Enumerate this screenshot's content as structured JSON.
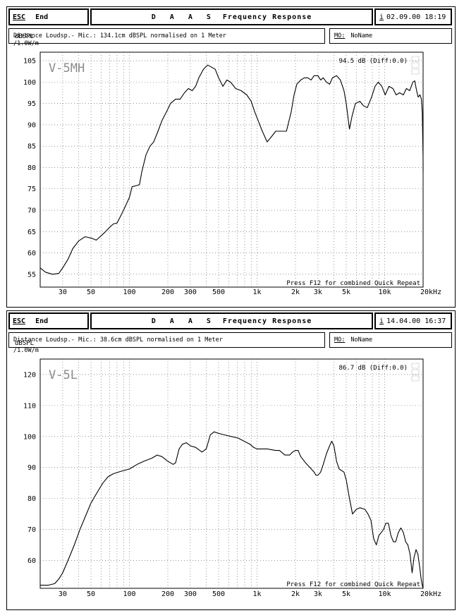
{
  "chart_data": [
    {
      "type": "line",
      "header": {
        "esc_label": "ESC",
        "end_label": "End",
        "title_app": "D A A S",
        "title_text": "Frequency Response",
        "date_key": "i",
        "date_text": "02.09.00 18:19"
      },
      "info": {
        "text": "Distance Loudsp.- Mic.: 134.1cm dBSPL normalised on 1 Meter",
        "mo_key": "MO:",
        "mo_value": "NoName"
      },
      "ylabel": "dBSPL",
      "yunit": "/1.0W/m",
      "label": "V-5MH",
      "level_readout": "94.5 dB (Diff:0.0)",
      "footer_note": "Press F12 for combined Quick Repeat",
      "x_ticks": [
        "30",
        "50",
        "100",
        "200",
        "300",
        "500",
        "1k",
        "2k",
        "3k",
        "5k",
        "10k",
        "20kHz"
      ],
      "y_ticks": [
        55,
        60,
        65,
        70,
        75,
        80,
        85,
        90,
        95,
        100,
        105
      ],
      "xlim": [
        20,
        20000
      ],
      "ylim": [
        52,
        107
      ],
      "xscale": "log",
      "grid": true,
      "series": [
        {
          "points": [
            [
              20,
              56.5
            ],
            [
              22,
              55.5
            ],
            [
              25,
              55
            ],
            [
              28,
              55.2
            ],
            [
              30,
              56.5
            ],
            [
              33,
              58.5
            ],
            [
              36,
              61
            ],
            [
              40,
              62.8
            ],
            [
              45,
              63.8
            ],
            [
              50,
              63.5
            ],
            [
              55,
              63
            ],
            [
              60,
              64
            ],
            [
              65,
              65
            ],
            [
              70,
              66
            ],
            [
              75,
              66.8
            ],
            [
              80,
              67
            ],
            [
              90,
              70
            ],
            [
              100,
              73
            ],
            [
              105,
              75.5
            ],
            [
              115,
              75.8
            ],
            [
              120,
              76
            ],
            [
              125,
              79
            ],
            [
              135,
              83
            ],
            [
              145,
              85
            ],
            [
              155,
              86
            ],
            [
              165,
              88
            ],
            [
              180,
              91
            ],
            [
              195,
              93
            ],
            [
              210,
              95
            ],
            [
              230,
              96
            ],
            [
              250,
              96
            ],
            [
              270,
              97.5
            ],
            [
              290,
              98.5
            ],
            [
              310,
              98
            ],
            [
              330,
              99
            ],
            [
              350,
              101
            ],
            [
              380,
              103
            ],
            [
              410,
              104
            ],
            [
              440,
              103.5
            ],
            [
              470,
              103
            ],
            [
              500,
              101
            ],
            [
              540,
              99
            ],
            [
              580,
              100.5
            ],
            [
              620,
              100
            ],
            [
              680,
              98.5
            ],
            [
              750,
              98
            ],
            [
              830,
              97
            ],
            [
              900,
              95.5
            ],
            [
              960,
              93
            ],
            [
              1020,
              91
            ],
            [
              1100,
              88.5
            ],
            [
              1200,
              86
            ],
            [
              1280,
              87
            ],
            [
              1400,
              88.5
            ],
            [
              1550,
              88.5
            ],
            [
              1700,
              88.5
            ],
            [
              1850,
              93
            ],
            [
              1950,
              97
            ],
            [
              2050,
              99.5
            ],
            [
              2200,
              100.5
            ],
            [
              2350,
              101
            ],
            [
              2500,
              101
            ],
            [
              2650,
              100.5
            ],
            [
              2800,
              101.5
            ],
            [
              3000,
              101.5
            ],
            [
              3150,
              100.5
            ],
            [
              3300,
              101
            ],
            [
              3500,
              100
            ],
            [
              3700,
              99.5
            ],
            [
              3900,
              101
            ],
            [
              4200,
              101.5
            ],
            [
              4500,
              100.5
            ],
            [
              4800,
              98
            ],
            [
              5000,
              95
            ],
            [
              5300,
              89
            ],
            [
              5550,
              92
            ],
            [
              5900,
              95
            ],
            [
              6400,
              95.5
            ],
            [
              6800,
              94.5
            ],
            [
              7300,
              94
            ],
            [
              7900,
              96.5
            ],
            [
              8400,
              99
            ],
            [
              8900,
              100
            ],
            [
              9500,
              99
            ],
            [
              10100,
              97
            ],
            [
              10800,
              99
            ],
            [
              11600,
              98.5
            ],
            [
              12300,
              97
            ],
            [
              13100,
              97.5
            ],
            [
              14000,
              97
            ],
            [
              14800,
              98.5
            ],
            [
              15700,
              98
            ],
            [
              16600,
              100
            ],
            [
              17200,
              100.3
            ],
            [
              17800,
              98
            ],
            [
              18300,
              96.5
            ],
            [
              18900,
              97
            ],
            [
              19400,
              96
            ],
            [
              19700,
              93
            ],
            [
              20000,
              82
            ],
            [
              20000,
              79
            ]
          ]
        }
      ]
    },
    {
      "type": "line",
      "header": {
        "esc_label": "ESC",
        "end_label": "End",
        "title_app": "D A A S",
        "title_text": "Frequency Response",
        "date_key": "i",
        "date_text": "14.04.00 16:37"
      },
      "info": {
        "text": "Distance Loudsp.- Mic.: 38.6cm dBSPL normalised on 1 Meter",
        "mo_key": "MO:",
        "mo_value": "NoName"
      },
      "ylabel": "dBSPL",
      "yunit": "/1.0W/m",
      "label": "V-5L",
      "level_readout": "86.7 dB (Diff:0.0)",
      "footer_note": "Press F12 for combined Quick Repeat",
      "x_ticks": [
        "30",
        "50",
        "100",
        "200",
        "300",
        "500",
        "1k",
        "2k",
        "3k",
        "5k",
        "10k",
        "20kHz"
      ],
      "y_ticks": [
        60,
        70,
        80,
        90,
        100,
        110,
        120
      ],
      "xlim": [
        20,
        20000
      ],
      "ylim": [
        51,
        125
      ],
      "xscale": "log",
      "grid": true,
      "series": [
        {
          "points": [
            [
              20,
              52
            ],
            [
              23,
              52
            ],
            [
              26,
              52.5
            ],
            [
              28,
              54
            ],
            [
              30,
              56
            ],
            [
              33,
              60
            ],
            [
              37,
              65
            ],
            [
              41,
              70
            ],
            [
              45,
              74
            ],
            [
              50,
              78.5
            ],
            [
              56,
              82
            ],
            [
              62,
              85
            ],
            [
              68,
              87
            ],
            [
              75,
              88
            ],
            [
              85,
              88.7
            ],
            [
              100,
              89.5
            ],
            [
              115,
              91
            ],
            [
              130,
              92
            ],
            [
              150,
              93
            ],
            [
              165,
              94
            ],
            [
              180,
              93.5
            ],
            [
              200,
              92
            ],
            [
              220,
              91
            ],
            [
              230,
              91.5
            ],
            [
              245,
              96
            ],
            [
              260,
              97.5
            ],
            [
              280,
              98
            ],
            [
              300,
              97
            ],
            [
              330,
              96.5
            ],
            [
              370,
              95
            ],
            [
              400,
              96
            ],
            [
              430,
              100.5
            ],
            [
              460,
              101.5
            ],
            [
              500,
              101
            ],
            [
              560,
              100.5
            ],
            [
              630,
              100
            ],
            [
              710,
              99.5
            ],
            [
              790,
              98.5
            ],
            [
              880,
              97.5
            ],
            [
              940,
              96.5
            ],
            [
              1000,
              96
            ],
            [
              1200,
              96
            ],
            [
              1400,
              95.5
            ],
            [
              1500,
              95.5
            ],
            [
              1650,
              94
            ],
            [
              1800,
              94
            ],
            [
              1900,
              95
            ],
            [
              2000,
              95.5
            ],
            [
              2100,
              95.5
            ],
            [
              2200,
              93.5
            ],
            [
              2400,
              91.5
            ],
            [
              2600,
              90
            ],
            [
              2800,
              88.5
            ],
            [
              2900,
              87.5
            ],
            [
              3000,
              87.5
            ],
            [
              3150,
              88.5
            ],
            [
              3300,
              91
            ],
            [
              3500,
              94.5
            ],
            [
              3700,
              97
            ],
            [
              3850,
              98.5
            ],
            [
              4000,
              97
            ],
            [
              4200,
              92
            ],
            [
              4400,
              89.5
            ],
            [
              4600,
              89
            ],
            [
              4800,
              88.5
            ],
            [
              5000,
              86
            ],
            [
              5300,
              80
            ],
            [
              5600,
              75
            ],
            [
              6000,
              76.5
            ],
            [
              6400,
              77
            ],
            [
              7000,
              76.5
            ],
            [
              7400,
              75
            ],
            [
              7800,
              73
            ],
            [
              8200,
              67
            ],
            [
              8600,
              65
            ],
            [
              9000,
              68
            ],
            [
              9400,
              69
            ],
            [
              9800,
              70
            ],
            [
              10200,
              72
            ],
            [
              10700,
              72
            ],
            [
              11200,
              68
            ],
            [
              11700,
              66
            ],
            [
              12200,
              66
            ],
            [
              12800,
              69
            ],
            [
              13400,
              70.5
            ],
            [
              14000,
              69
            ],
            [
              14600,
              66
            ],
            [
              15200,
              65
            ],
            [
              15800,
              62
            ],
            [
              16400,
              56
            ],
            [
              17000,
              61
            ],
            [
              17600,
              63.5
            ],
            [
              18200,
              62
            ],
            [
              18800,
              58
            ],
            [
              19300,
              54
            ],
            [
              19700,
              52
            ],
            [
              20000,
              51
            ]
          ]
        }
      ]
    }
  ]
}
